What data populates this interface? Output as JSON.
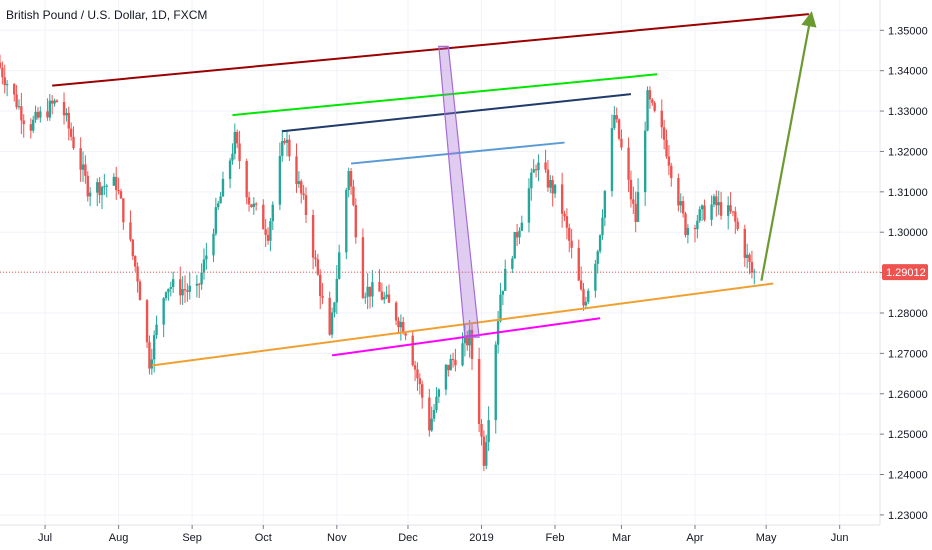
{
  "header": {
    "symbol_title": "British Pound / U.S. Dollar, 1D, FXCM"
  },
  "chart_data": {
    "type": "candlestick",
    "y_ticks": [
      "1.35000",
      "1.34000",
      "1.33000",
      "1.32000",
      "1.31000",
      "1.30000",
      "1.29000",
      "1.28000",
      "1.27000",
      "1.26000",
      "1.25000",
      "1.24000",
      "1.23000"
    ],
    "y_range": [
      1.2275,
      1.3575
    ],
    "x_ticks": [
      {
        "label": "Jul",
        "date": "2018-07-01"
      },
      {
        "label": "Aug",
        "date": "2018-08-01"
      },
      {
        "label": "Sep",
        "date": "2018-09-01"
      },
      {
        "label": "Oct",
        "date": "2018-10-01"
      },
      {
        "label": "Nov",
        "date": "2018-11-01"
      },
      {
        "label": "Dec",
        "date": "2018-12-01"
      },
      {
        "label": "2019",
        "date": "2019-01-01"
      },
      {
        "label": "Feb",
        "date": "2019-02-01"
      },
      {
        "label": "Mar",
        "date": "2019-03-01"
      },
      {
        "label": "Apr",
        "date": "2019-04-01"
      },
      {
        "label": "May",
        "date": "2019-05-01"
      },
      {
        "label": "Jun",
        "date": "2019-06-01"
      }
    ],
    "x_range": [
      "2018-06-12",
      "2019-06-18"
    ],
    "last_price": "1.29012",
    "colors": {
      "up": "#26a69a",
      "down": "#ef5350",
      "last_price": "#ef5350"
    },
    "anchors": [
      [
        "2018-06-12",
        1.342
      ],
      [
        "2018-06-25",
        1.326
      ],
      [
        "2018-07-08",
        1.333
      ],
      [
        "2018-07-20",
        1.311
      ],
      [
        "2018-08-01",
        1.312
      ],
      [
        "2018-08-10",
        1.289
      ],
      [
        "2018-08-15",
        1.268
      ],
      [
        "2018-08-22",
        1.287
      ],
      [
        "2018-09-04",
        1.285
      ],
      [
        "2018-09-20",
        1.323
      ],
      [
        "2018-09-26",
        1.308
      ],
      [
        "2018-10-04",
        1.3
      ],
      [
        "2018-10-11",
        1.324
      ],
      [
        "2018-10-20",
        1.305
      ],
      [
        "2018-10-30",
        1.273
      ],
      [
        "2018-11-07",
        1.316
      ],
      [
        "2018-11-13",
        1.286
      ],
      [
        "2018-11-20",
        1.285
      ],
      [
        "2018-12-01",
        1.276
      ],
      [
        "2018-12-11",
        1.252
      ],
      [
        "2018-12-18",
        1.266
      ],
      [
        "2018-12-28",
        1.274
      ],
      [
        "2019-01-03",
        1.244
      ],
      [
        "2019-01-10",
        1.285
      ],
      [
        "2019-01-25",
        1.317
      ],
      [
        "2019-02-04",
        1.308
      ],
      [
        "2019-02-14",
        1.282
      ],
      [
        "2019-02-20",
        1.296
      ],
      [
        "2019-02-27",
        1.329
      ],
      [
        "2019-03-08",
        1.303
      ],
      [
        "2019-03-13",
        1.333
      ],
      [
        "2019-03-20",
        1.323
      ],
      [
        "2019-03-29",
        1.301
      ],
      [
        "2019-04-10",
        1.307
      ],
      [
        "2019-04-18",
        1.304
      ],
      [
        "2019-04-26",
        1.29
      ]
    ],
    "drawings": [
      {
        "color": "#9b0000",
        "from": [
          "2018-07-04",
          1.3363
        ],
        "to": [
          "2019-05-19",
          1.354
        ]
      },
      {
        "color": "#00e600",
        "from": [
          "2018-09-18",
          1.329
        ],
        "to": [
          "2019-03-16",
          1.3391
        ]
      },
      {
        "color": "#1f3a6b",
        "from": [
          "2018-10-09",
          1.325
        ],
        "to": [
          "2019-03-05",
          1.3342
        ]
      },
      {
        "color": "#5b9bd5",
        "from": [
          "2018-11-07",
          1.317
        ],
        "to": [
          "2019-02-05",
          1.3222
        ]
      },
      {
        "color": "#f0a030",
        "from": [
          "2018-08-15",
          1.267
        ],
        "to": [
          "2019-05-04",
          1.2873
        ]
      },
      {
        "color": "#ff00ff",
        "from": [
          "2018-10-30",
          1.2695
        ],
        "to": [
          "2019-02-20",
          1.2787
        ]
      },
      {
        "color": "#6b9b30",
        "from": [
          "2019-04-29",
          1.288
        ],
        "to": [
          "2019-05-20",
          1.354
        ],
        "arrow": true
      }
    ],
    "band": {
      "color": "#a66cd6",
      "top_left": [
        "2018-12-14",
        1.346
      ],
      "top_right": [
        "2018-12-18",
        1.346
      ],
      "bottom_right": [
        "2018-12-31",
        1.274
      ],
      "bottom_left": [
        "2018-12-25",
        1.274
      ]
    }
  }
}
